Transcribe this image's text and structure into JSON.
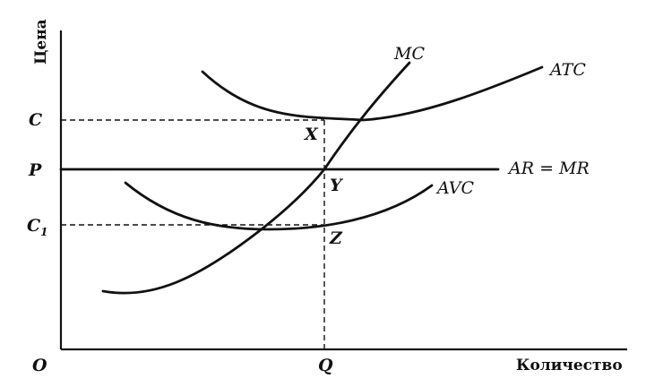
{
  "axes": {
    "y_title": "Цена",
    "x_title": "Количество",
    "origin": "O"
  },
  "y_ticks": {
    "c": "C",
    "p": "P",
    "c1_base": "C",
    "c1_sub": "1"
  },
  "x_ticks": {
    "q": "Q"
  },
  "curves": {
    "mc": "MC",
    "atc": "ATC",
    "avc": "AVC",
    "ar_mr": "AR = MR"
  },
  "points": {
    "x": "X",
    "y": "Y",
    "z": "Z"
  }
}
